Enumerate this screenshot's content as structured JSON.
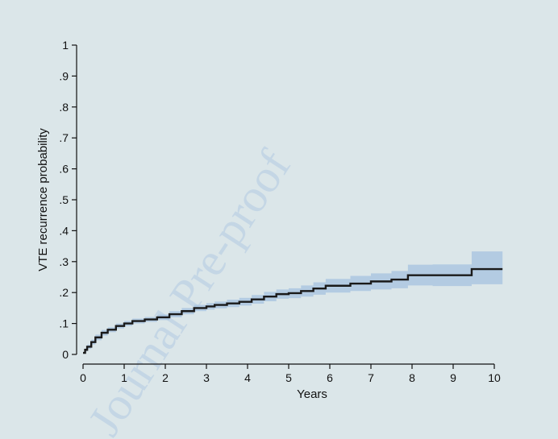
{
  "chart_data": {
    "type": "line",
    "xlabel": "Years",
    "ylabel": "VTE recurrence probability",
    "xlim": [
      0,
      10.2
    ],
    "ylim": [
      0,
      1
    ],
    "xticks": [
      0,
      1,
      2,
      3,
      4,
      5,
      6,
      7,
      8,
      9,
      10
    ],
    "xtick_labels": [
      "0",
      "1",
      "2",
      "3",
      "4",
      "5",
      "6",
      "7",
      "8",
      "9",
      "10"
    ],
    "yticks": [
      0,
      0.1,
      0.2,
      0.3,
      0.4,
      0.5,
      0.6,
      0.7,
      0.8,
      0.9,
      1
    ],
    "ytick_labels": [
      "0",
      ".1",
      ".2",
      ".3",
      ".4",
      ".5",
      ".6",
      ".7",
      ".8",
      ".9",
      "1"
    ],
    "grid": false,
    "watermark": "Journal Pre-proof",
    "colors": {
      "line": "#1a1a1a",
      "band": "#a9c4e0",
      "background": "#dbe6e9"
    },
    "series": [
      {
        "step": true,
        "x": [
          0.0,
          0.05,
          0.1,
          0.2,
          0.3,
          0.45,
          0.6,
          0.8,
          1.0,
          1.2,
          1.5,
          1.8,
          2.1,
          2.4,
          2.7,
          3.0,
          3.2,
          3.5,
          3.8,
          4.1,
          4.4,
          4.7,
          5.0,
          5.3,
          5.6,
          5.9,
          6.5,
          7.0,
          7.5,
          7.9,
          8.5,
          9.45,
          10.2
        ],
        "y": [
          0.005,
          0.015,
          0.025,
          0.04,
          0.055,
          0.07,
          0.08,
          0.092,
          0.1,
          0.108,
          0.113,
          0.12,
          0.13,
          0.14,
          0.15,
          0.155,
          0.16,
          0.165,
          0.17,
          0.178,
          0.187,
          0.195,
          0.198,
          0.205,
          0.213,
          0.222,
          0.229,
          0.236,
          0.242,
          0.256,
          0.256,
          0.276,
          0.276
        ],
        "lower": [
          0.002,
          0.01,
          0.018,
          0.032,
          0.046,
          0.061,
          0.072,
          0.084,
          0.092,
          0.1,
          0.105,
          0.111,
          0.12,
          0.13,
          0.14,
          0.145,
          0.149,
          0.153,
          0.158,
          0.164,
          0.172,
          0.18,
          0.182,
          0.187,
          0.193,
          0.2,
          0.205,
          0.21,
          0.214,
          0.223,
          0.221,
          0.227,
          0.224
        ],
        "upper": [
          0.008,
          0.02,
          0.032,
          0.048,
          0.064,
          0.079,
          0.088,
          0.1,
          0.108,
          0.116,
          0.121,
          0.129,
          0.14,
          0.15,
          0.16,
          0.166,
          0.171,
          0.177,
          0.183,
          0.192,
          0.202,
          0.21,
          0.214,
          0.223,
          0.233,
          0.244,
          0.254,
          0.262,
          0.27,
          0.29,
          0.291,
          0.333,
          0.333
        ]
      }
    ]
  }
}
